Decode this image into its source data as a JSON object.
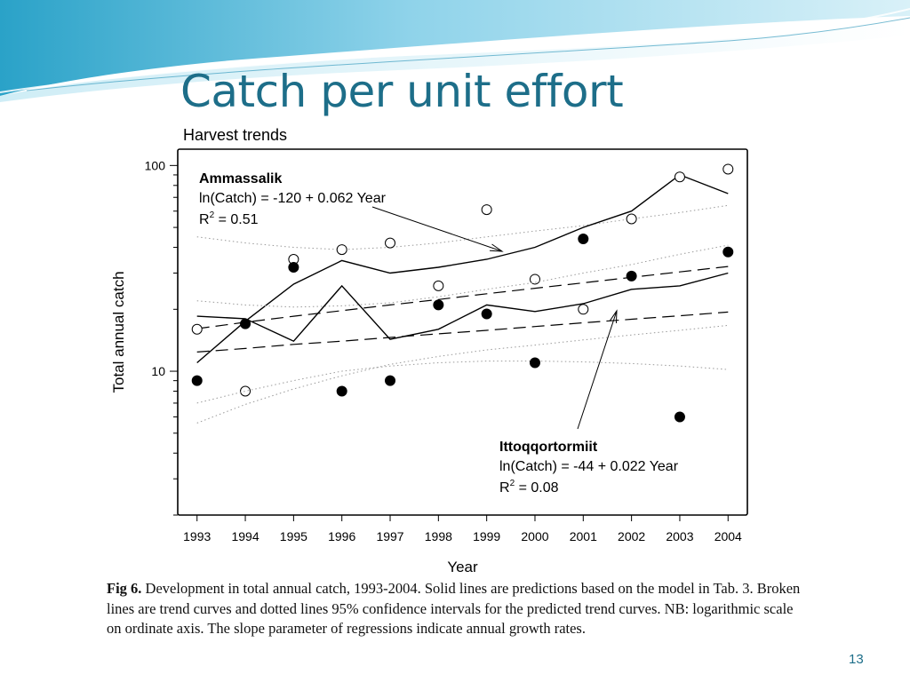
{
  "slide": {
    "title": "Catch per unit effort",
    "page_number": "13",
    "colors": {
      "title": "#1d6e89",
      "wave_dark": "#2a9fc4",
      "wave_light": "#bfe7f3"
    }
  },
  "caption": {
    "label": "Fig 6.",
    "text": " Development in total annual catch, 1993-2004. Solid lines are predictions based on the model in Tab. 3. Broken lines are trend curves and dotted lines 95% confidence intervals for the predicted trend curves. NB: logarithmic scale on ordinate axis. The slope parameter of regressions indicate annual growth rates."
  },
  "chart_data": {
    "type": "scatter",
    "title": "Harvest trends",
    "xlabel": "Year",
    "ylabel": "Total annual catch",
    "yscale": "log",
    "xlim": [
      1992.6,
      2004.4
    ],
    "ylim": [
      2,
      120
    ],
    "x_ticks": [
      1993,
      1994,
      1995,
      1996,
      1997,
      1998,
      1999,
      2000,
      2001,
      2002,
      2003,
      2004
    ],
    "y_tick_labels": [
      {
        "value": 100,
        "label": "100"
      },
      {
        "value": 10,
        "label": "10"
      }
    ],
    "y_minor_ticks": [
      2,
      3,
      4,
      5,
      6,
      7,
      8,
      9,
      20,
      30,
      40,
      50,
      60,
      70,
      80,
      90
    ],
    "grid": false,
    "series": [
      {
        "name": "Ammassalik",
        "marker": "open-circle",
        "x": [
          1993,
          1994,
          1995,
          1996,
          1997,
          1998,
          1999,
          2000,
          2001,
          2002,
          2003,
          2004
        ],
        "observed": [
          16,
          8,
          35,
          39,
          42,
          26,
          61,
          28,
          20,
          55,
          88,
          96
        ],
        "prediction": [
          11,
          17.5,
          26.5,
          34.5,
          30,
          32,
          35,
          40,
          50,
          60,
          90,
          73
        ],
        "trend": [
          16.1,
          17.3,
          18.5,
          19.7,
          21.0,
          22.3,
          23.8,
          25.3,
          26.9,
          28.6,
          30.4,
          32.3
        ],
        "ci_lower": [
          5.6,
          6.9,
          8.2,
          9.5,
          10.8,
          11.8,
          12.7,
          13.4,
          14.2,
          15.0,
          15.8,
          16.7
        ],
        "ci_upper": [
          45,
          42,
          40,
          39,
          40,
          42,
          45,
          48,
          51,
          55,
          59,
          64
        ],
        "annotation": {
          "name": "Ammassalik",
          "equation": "ln(Catch) = -120 + 0.062 Year",
          "r2_prefix": "R",
          "r2_sup": "2",
          "r2_value": " = 0.51"
        }
      },
      {
        "name": "Ittoqqortormiit",
        "marker": "filled-circle",
        "x": [
          1993,
          1994,
          1995,
          1996,
          1997,
          1998,
          1999,
          2000,
          2001,
          2002,
          2003,
          2004
        ],
        "observed": [
          9,
          17,
          32,
          8,
          9,
          21,
          19,
          11,
          44,
          29,
          6,
          38
        ],
        "prediction": [
          18.5,
          18,
          14,
          26,
          14.3,
          16,
          21,
          19.5,
          21.3,
          25,
          26,
          30
        ],
        "trend": [
          12.4,
          12.9,
          13.5,
          14.0,
          14.6,
          15.2,
          15.8,
          16.5,
          17.2,
          17.9,
          18.6,
          19.4
        ],
        "ci_lower": [
          7,
          8,
          9,
          10,
          10.6,
          11,
          11.2,
          11.2,
          11.1,
          10.9,
          10.6,
          10.2
        ],
        "ci_upper": [
          22,
          21,
          20.5,
          20.8,
          21.5,
          23,
          25,
          27,
          30,
          33,
          37,
          41
        ],
        "annotation": {
          "name": "Ittoqqortormiit",
          "equation": "ln(Catch) = -44 + 0.022 Year",
          "r2_prefix": "R",
          "r2_sup": "2",
          "r2_value": " = 0.08"
        }
      }
    ]
  }
}
